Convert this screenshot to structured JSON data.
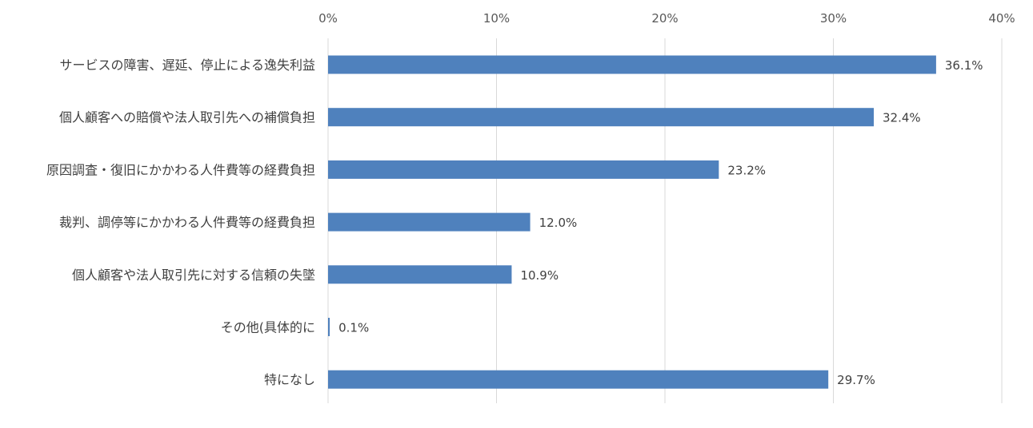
{
  "chart_data": {
    "type": "bar",
    "orientation": "horizontal",
    "title": "",
    "xlabel": "",
    "ylabel": "",
    "xlim": [
      0,
      40
    ],
    "x_ticks": [
      0,
      10,
      20,
      30,
      40
    ],
    "x_tick_labels": [
      "0%",
      "10%",
      "20%",
      "30%",
      "40%"
    ],
    "axis_position": "top",
    "grid": true,
    "legend": "none",
    "bar_color": "#4f81bd",
    "categories": [
      "サービスの障害、遅延、停止による逸失利益",
      "個人顧客への賠償や法人取引先への補償負担",
      "原因調査・復旧にかかわる人件費等の経費負担",
      "裁判、調停等にかかわる人件費等の経費負担",
      "個人顧客や法人取引先に対する信頼の失墜",
      "その他(具体的に",
      "特になし"
    ],
    "values": [
      36.1,
      32.4,
      23.2,
      12.0,
      10.9,
      0.1,
      29.7
    ],
    "value_labels": [
      "36.1%",
      "32.4%",
      "23.2%",
      "12.0%",
      "10.9%",
      "0.1%",
      "29.7%"
    ]
  }
}
